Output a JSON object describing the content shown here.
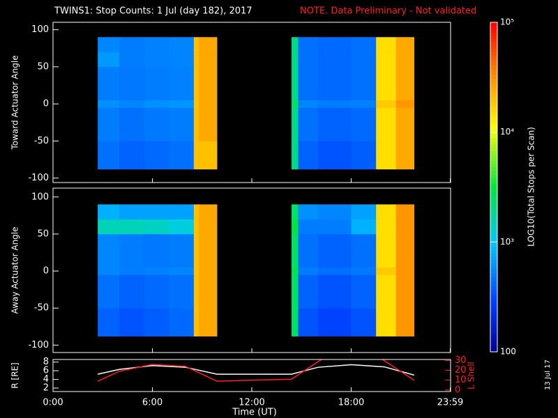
{
  "title": "TWINS1: Stop Counts:  1 Jul (day 182), 2017",
  "note": "NOTE. Data Preliminary - Not validated",
  "date_stamp": "13 Jul 17",
  "xaxis": {
    "label": "Time (UT)",
    "xlim": [
      0,
      24
    ],
    "xticks": [
      {
        "value": 0,
        "label": "0:00"
      },
      {
        "value": 6,
        "label": "6:00"
      },
      {
        "value": 12,
        "label": "12:00"
      },
      {
        "value": 18,
        "label": "18:00"
      },
      {
        "value": 23.98,
        "label": "23:59"
      }
    ]
  },
  "colorbar": {
    "label": "LOG10(Total Stops per Scan)",
    "lim": [
      100,
      100000
    ],
    "log": true,
    "ticks": [
      {
        "value": 100000,
        "label": "10⁵"
      },
      {
        "value": 10000,
        "label": "10⁴"
      },
      {
        "value": 1000,
        "label": "10³"
      },
      100
    ]
  },
  "chart_data": [
    {
      "type": "heatmap",
      "ylabel": "Toward Actuator Angle",
      "ylim": [
        -106,
        110
      ],
      "yticks": [
        -100,
        -50,
        0,
        50,
        100
      ],
      "x_edges": [
        2.7,
        4,
        5.5,
        7,
        8.5,
        8.8,
        9.9,
        14.4,
        14.8,
        16,
        18,
        19.5,
        20.7,
        21.8
      ],
      "y_edges": [
        -88,
        -50,
        -5,
        5,
        50,
        70,
        90
      ],
      "z": [
        [
          450,
          400,
          420,
          450,
          20000,
          20000,
          null,
          2000,
          400,
          350,
          380,
          15000,
          25000
        ],
        [
          500,
          450,
          480,
          500,
          20000,
          25000,
          null,
          2000,
          450,
          400,
          420,
          15000,
          25000
        ],
        [
          600,
          550,
          600,
          620,
          20000,
          25000,
          null,
          2500,
          550,
          500,
          520,
          18000,
          30000
        ],
        [
          500,
          480,
          500,
          520,
          20000,
          25000,
          null,
          2000,
          450,
          420,
          450,
          15000,
          25000
        ],
        [
          650,
          500,
          520,
          540,
          20000,
          25000,
          null,
          2000,
          450,
          420,
          450,
          15000,
          25000
        ],
        [
          550,
          500,
          520,
          540,
          20000,
          25000,
          null,
          2000,
          450,
          420,
          450,
          15000,
          25000
        ]
      ]
    },
    {
      "type": "heatmap",
      "ylabel": "Away Actuator Angle",
      "ylim": [
        -110,
        112
      ],
      "yticks": [
        -100,
        -50,
        0,
        50,
        100
      ],
      "x_edges": [
        2.7,
        4,
        5.5,
        7,
        8.5,
        8.8,
        9.9,
        14.4,
        14.8,
        16,
        18,
        19.5,
        20.7,
        21.8
      ],
      "y_edges": [
        -88,
        -50,
        -5,
        5,
        50,
        70,
        90
      ],
      "z": [
        [
          400,
          350,
          380,
          420,
          20000,
          25000,
          null,
          2500,
          350,
          300,
          350,
          15000,
          30000
        ],
        [
          450,
          400,
          420,
          450,
          20000,
          25000,
          null,
          2500,
          400,
          350,
          400,
          15000,
          30000
        ],
        [
          550,
          500,
          520,
          550,
          20000,
          25000,
          null,
          3000,
          500,
          450,
          480,
          18000,
          30000
        ],
        [
          550,
          500,
          480,
          500,
          20000,
          25000,
          null,
          2500,
          450,
          400,
          450,
          15000,
          30000
        ],
        [
          1500,
          1500,
          1400,
          1200,
          20000,
          25000,
          null,
          3000,
          500,
          500,
          800,
          15000,
          30000
        ],
        [
          800,
          700,
          700,
          700,
          20000,
          25000,
          null,
          2500,
          600,
          550,
          700,
          15000,
          30000
        ]
      ]
    },
    {
      "type": "line",
      "ylim": [
        1.2,
        8.6
      ],
      "yticks": [
        2,
        4,
        6,
        8
      ],
      "y2lim": [
        -1.5,
        31
      ],
      "y2ticks": [
        0,
        10,
        20,
        30
      ],
      "series": [
        {
          "name": "R [RE]",
          "color": "#ffffff",
          "x": [
            2.7,
            4,
            6,
            8,
            9.9,
            12,
            14.4,
            16,
            18,
            20,
            21.8
          ],
          "values": [
            5.2,
            6.3,
            7.2,
            6.8,
            5.2,
            5.2,
            5.2,
            6.8,
            7.4,
            6.9,
            5.0
          ]
        },
        {
          "name": "L Shell",
          "color": "#ff2020",
          "axis": "y2",
          "x": [
            2.7,
            4,
            6,
            8,
            9.9,
            12,
            14.4,
            16.3,
            18,
            19.8,
            21.8
          ],
          "values": [
            9,
            19,
            26,
            24,
            9,
            10,
            11,
            32,
            null,
            32,
            10
          ]
        }
      ]
    }
  ]
}
